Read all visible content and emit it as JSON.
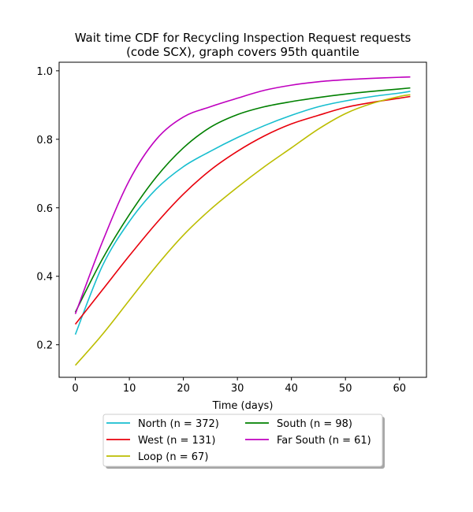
{
  "chart_data": {
    "type": "line",
    "title_line1": "Wait time CDF for Recycling Inspection Request  requests",
    "title_line2": "(code SCX), graph covers 95th quantile",
    "xlabel": "Time (days)",
    "ylabel": "",
    "xlim": [
      -3,
      65
    ],
    "ylim": [
      0.105,
      1.025
    ],
    "xticks": [
      0,
      10,
      20,
      30,
      40,
      50,
      60
    ],
    "xtick_labels": [
      "0",
      "10",
      "20",
      "30",
      "40",
      "50",
      "60"
    ],
    "yticks": [
      0.2,
      0.4,
      0.6,
      0.8,
      1.0
    ],
    "ytick_labels": [
      "0.2",
      "0.4",
      "0.6",
      "0.8",
      "1.0"
    ],
    "grid": false,
    "legend_placement": "below plot, two columns",
    "x": [
      0,
      5,
      10,
      15,
      20,
      25,
      30,
      35,
      40,
      45,
      50,
      55,
      60,
      62
    ],
    "series": [
      {
        "name": "North (n = 372)",
        "color": "#17becf",
        "values": [
          0.23,
          0.43,
          0.56,
          0.655,
          0.72,
          0.765,
          0.805,
          0.84,
          0.87,
          0.895,
          0.912,
          0.925,
          0.935,
          0.94
        ]
      },
      {
        "name": "West (n = 131)",
        "color": "#e8000b",
        "values": [
          0.26,
          0.36,
          0.46,
          0.555,
          0.64,
          0.71,
          0.765,
          0.81,
          0.845,
          0.87,
          0.893,
          0.908,
          0.92,
          0.925
        ]
      },
      {
        "name": "Loop (n = 67)",
        "color": "#bcbd00",
        "values": [
          0.14,
          0.23,
          0.33,
          0.43,
          0.52,
          0.595,
          0.66,
          0.72,
          0.775,
          0.83,
          0.875,
          0.905,
          0.925,
          0.93
        ]
      },
      {
        "name": "South (n = 98)",
        "color": "#008000",
        "values": [
          0.295,
          0.45,
          0.58,
          0.69,
          0.775,
          0.835,
          0.872,
          0.895,
          0.91,
          0.922,
          0.932,
          0.94,
          0.947,
          0.95
        ]
      },
      {
        "name": "Far South (n = 61)",
        "color": "#bf00bf",
        "values": [
          0.29,
          0.5,
          0.68,
          0.8,
          0.865,
          0.895,
          0.92,
          0.943,
          0.958,
          0.968,
          0.974,
          0.978,
          0.981,
          0.982
        ]
      }
    ]
  }
}
